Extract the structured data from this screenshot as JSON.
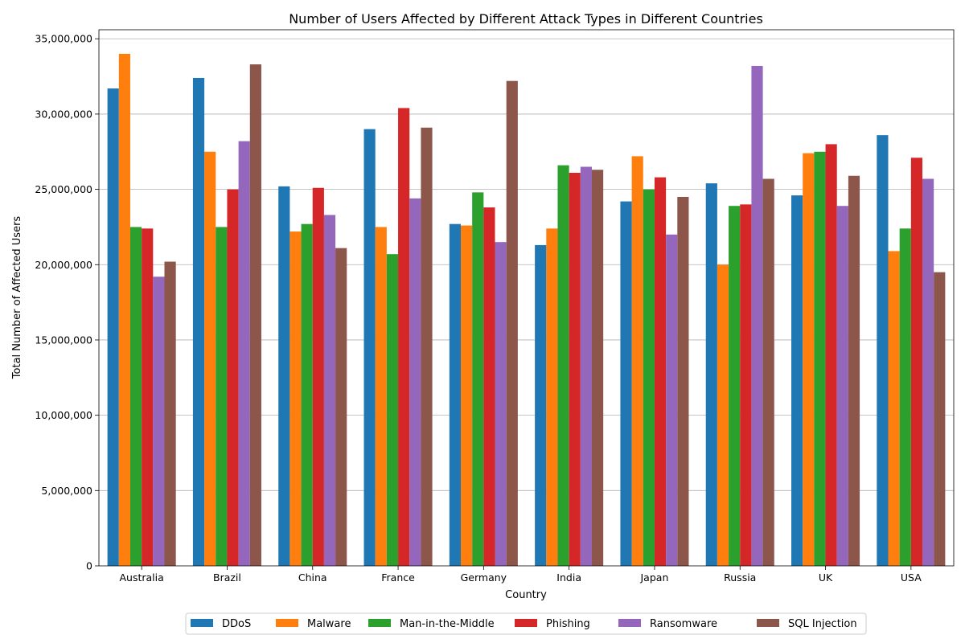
{
  "chart_data": {
    "type": "bar",
    "title": "Number of Users Affected by Different Attack Types in Different Countries",
    "xlabel": "Country",
    "ylabel": "Total Number of Affected Users",
    "categories": [
      "Australia",
      "Brazil",
      "China",
      "France",
      "Germany",
      "India",
      "Japan",
      "Russia",
      "UK",
      "USA"
    ],
    "ylim": [
      0,
      35600000
    ],
    "yticks": [
      0,
      5000000,
      10000000,
      15000000,
      20000000,
      25000000,
      30000000,
      35000000
    ],
    "ytick_labels": [
      "0",
      "5,000,000",
      "10,000,000",
      "15,000,000",
      "20,000,000",
      "25,000,000",
      "30,000,000",
      "35,000,000"
    ],
    "grid": "horizontal",
    "legend_position": "bottom-center",
    "series": [
      {
        "name": "DDoS",
        "color": "#1f77b4",
        "values": [
          31700000,
          32400000,
          25200000,
          29000000,
          22700000,
          21300000,
          24200000,
          25400000,
          24600000,
          28600000
        ]
      },
      {
        "name": "Malware",
        "color": "#ff7f0e",
        "values": [
          34000000,
          27500000,
          22200000,
          22500000,
          22600000,
          22400000,
          27200000,
          20000000,
          27400000,
          20900000
        ]
      },
      {
        "name": "Man-in-the-Middle",
        "color": "#2ca02c",
        "values": [
          22500000,
          22500000,
          22700000,
          20700000,
          24800000,
          26600000,
          25000000,
          23900000,
          27500000,
          22400000
        ]
      },
      {
        "name": "Phishing",
        "color": "#d62728",
        "values": [
          22400000,
          25000000,
          25100000,
          30400000,
          23800000,
          26100000,
          25800000,
          24000000,
          28000000,
          27100000
        ]
      },
      {
        "name": "Ransomware",
        "color": "#9467bd",
        "values": [
          19200000,
          28200000,
          23300000,
          24400000,
          21500000,
          26500000,
          22000000,
          33200000,
          23900000,
          25700000
        ]
      },
      {
        "name": "SQL Injection",
        "color": "#8c564b",
        "values": [
          20200000,
          33300000,
          21100000,
          29100000,
          32200000,
          26300000,
          24500000,
          25700000,
          25900000,
          19500000
        ]
      }
    ]
  }
}
